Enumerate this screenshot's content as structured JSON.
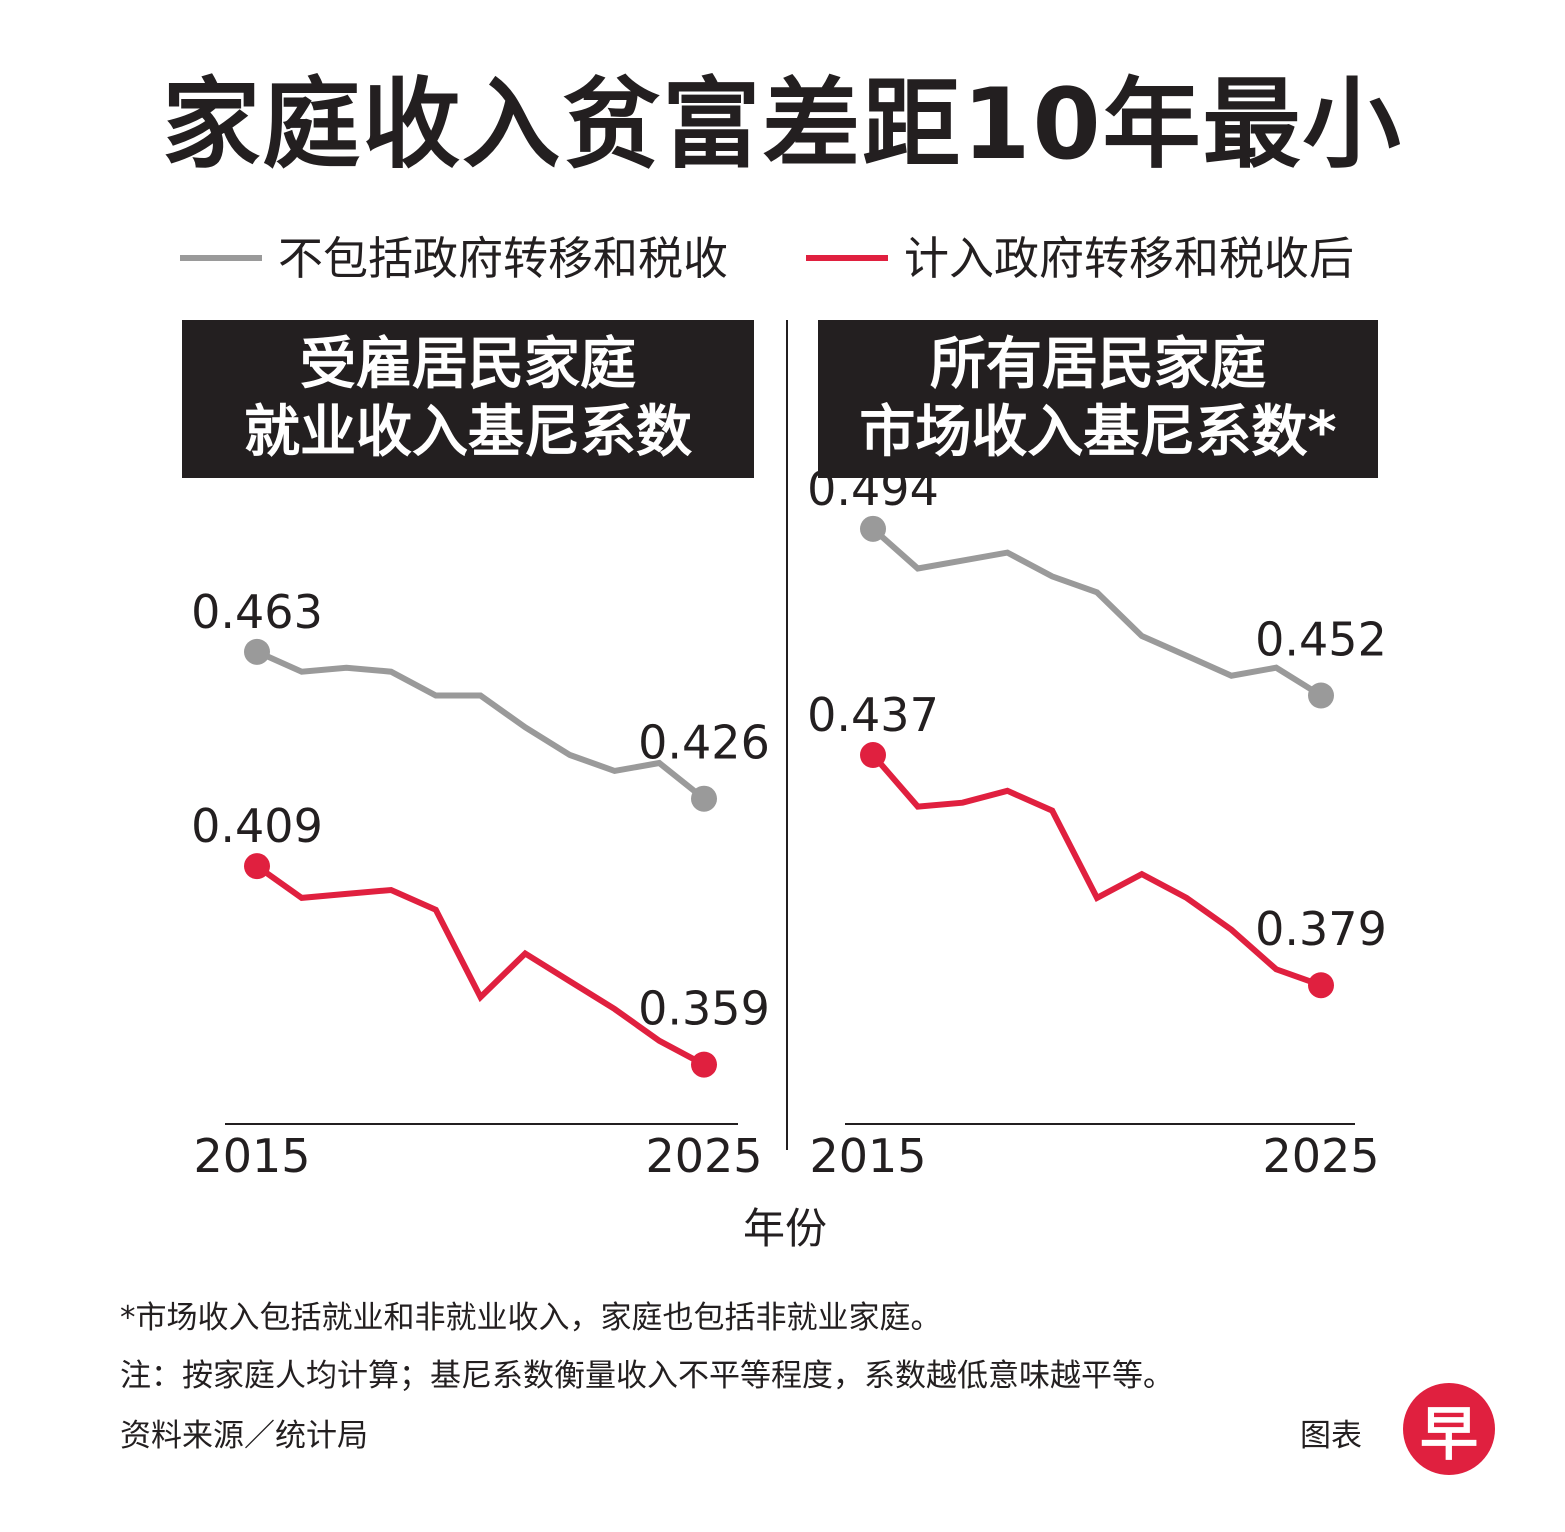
{
  "title": "家庭收入贫富差距10年最小",
  "legend": [
    {
      "label": "不包括政府转移和税收",
      "color": "#9a9a9a"
    },
    {
      "label": "计入政府转移和税收后",
      "color": "#e0203f"
    }
  ],
  "x_axis_title": "年份",
  "chart_data": [
    {
      "type": "line",
      "title": "受雇居民家庭\n就业收入基尼系数",
      "title_lines": [
        "受雇居民家庭",
        "就业收入基尼系数"
      ],
      "x": [
        2015,
        2016,
        2017,
        2018,
        2019,
        2020,
        2021,
        2022,
        2023,
        2024,
        2025
      ],
      "tick_labels": [
        "2015",
        "2025"
      ],
      "ylim": [
        0.34,
        0.5
      ],
      "series": [
        {
          "name": "不包括政府转移和税收",
          "color": "#9a9a9a",
          "values": [
            0.463,
            0.458,
            0.459,
            0.458,
            0.452,
            0.452,
            0.444,
            0.437,
            0.433,
            0.435,
            0.426
          ],
          "start_label": "0.463",
          "end_label": "0.426"
        },
        {
          "name": "计入政府转移和税收后",
          "color": "#e0203f",
          "values": [
            0.409,
            0.401,
            0.402,
            0.403,
            0.398,
            0.376,
            0.387,
            0.38,
            0.373,
            0.365,
            0.359
          ],
          "start_label": "0.409",
          "end_label": "0.359"
        }
      ]
    },
    {
      "type": "line",
      "title": "所有居民家庭\n市场收入基尼系数*",
      "title_lines": [
        "所有居民家庭",
        "市场收入基尼系数*"
      ],
      "x": [
        2015,
        2016,
        2017,
        2018,
        2019,
        2020,
        2021,
        2022,
        2023,
        2024,
        2025
      ],
      "tick_labels": [
        "2015",
        "2025"
      ],
      "ylim": [
        0.34,
        0.5
      ],
      "series": [
        {
          "name": "不包括政府转移和税收",
          "color": "#9a9a9a",
          "values": [
            0.494,
            0.484,
            0.486,
            0.488,
            0.482,
            0.478,
            0.467,
            0.462,
            0.457,
            0.459,
            0.452
          ],
          "start_label": "0.494",
          "end_label": "0.452"
        },
        {
          "name": "计入政府转移和税收后",
          "color": "#e0203f",
          "values": [
            0.437,
            0.424,
            0.425,
            0.428,
            0.423,
            0.401,
            0.407,
            0.401,
            0.393,
            0.383,
            0.379
          ],
          "start_label": "0.437",
          "end_label": "0.379"
        }
      ]
    }
  ],
  "notes": [
    "*市场收入包括就业和非就业收入，家庭也包括非就业家庭。",
    "注：按家庭人均计算；基尼系数衡量收入不平等程度，系数越低意味越平等。",
    "资料来源／统计局"
  ],
  "credit": "图表",
  "logo_char": "早"
}
